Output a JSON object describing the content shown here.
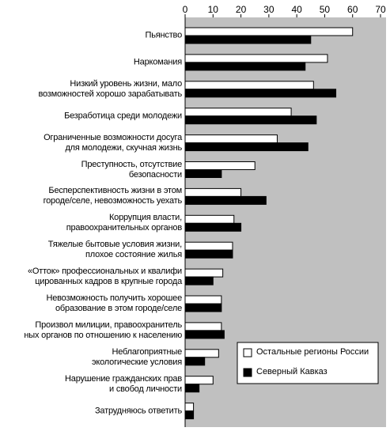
{
  "chart_data": {
    "type": "barh",
    "categories": [
      "Пьянство",
      "Наркомания",
      "Низкий уровень жизни, мало\nвозможностей хорошо зарабатывать",
      "Безработица среди молодежи",
      "Ограниченные возможности досуга\nдля молодежи, скучная жизнь",
      "Преступность, отсутствие\nбезопасности",
      "Бесперспективность жизни в этом\nгороде/селе, невозможность уехать",
      "Коррупция власти,\nправоохранительных органов",
      "Тяжелые бытовые условия жизни,\nплохое состояние жилья",
      "«Отток» профессиональных и квалифи\nцированных кадров в крупные города",
      "Невозможность получить хорошее\nобразование в этом городе/селе",
      "Произвол милиции, правоохранитель\nных органов по отношению к населению",
      "Неблагоприятные\nэкологические условия",
      "Нарушение гражданских прав\nи свобод личности",
      "Затрудняюсь ответить"
    ],
    "series": [
      {
        "name": "Остальные регионы России",
        "color": "#ffffff",
        "values": [
          60,
          51,
          46,
          38,
          33,
          25,
          20,
          17.5,
          17,
          13.5,
          13,
          13,
          12,
          10,
          3
        ]
      },
      {
        "name": "Северный Кавказ",
        "color": "#000000",
        "values": [
          45,
          43,
          54,
          47,
          44,
          13,
          29,
          20,
          17,
          10,
          13,
          14,
          7,
          5,
          3
        ]
      }
    ],
    "xlim": [
      0,
      70
    ],
    "xticks": [
      0,
      10,
      20,
      30,
      40,
      50,
      60,
      70
    ],
    "legend": "lower right",
    "background": "#c0c0c0"
  }
}
